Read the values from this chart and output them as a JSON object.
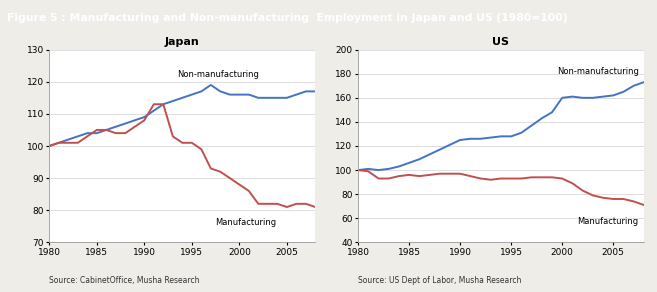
{
  "title": "Figure 5 : Manufacturing and Non-manufacturing  Employment in Japan and US (1980=100)",
  "title_bg": "#2e7d4f",
  "title_color": "white",
  "japan_title": "Japan",
  "us_title": "US",
  "years": [
    1980,
    1981,
    1982,
    1983,
    1984,
    1985,
    1986,
    1987,
    1988,
    1989,
    1990,
    1991,
    1992,
    1993,
    1994,
    1995,
    1996,
    1997,
    1998,
    1999,
    2000,
    2001,
    2002,
    2003,
    2004,
    2005,
    2006,
    2007,
    2008
  ],
  "japan_nonmfg": [
    100,
    101,
    102,
    103,
    104,
    104,
    105,
    106,
    107,
    108,
    109,
    111,
    113,
    114,
    115,
    116,
    117,
    119,
    117,
    116,
    116,
    116,
    115,
    115,
    115,
    115,
    116,
    117,
    117
  ],
  "japan_mfg": [
    100,
    101,
    101,
    101,
    103,
    105,
    105,
    104,
    104,
    106,
    108,
    113,
    113,
    103,
    101,
    101,
    99,
    93,
    92,
    90,
    88,
    86,
    82,
    82,
    82,
    81,
    82,
    82,
    81
  ],
  "us_nonmfg": [
    100,
    101,
    100,
    101,
    103,
    106,
    109,
    113,
    117,
    121,
    125,
    126,
    126,
    127,
    128,
    128,
    131,
    137,
    143,
    148,
    160,
    161,
    160,
    160,
    161,
    162,
    165,
    170,
    173
  ],
  "us_mfg": [
    100,
    99,
    93,
    93,
    95,
    96,
    95,
    96,
    97,
    97,
    97,
    95,
    93,
    92,
    93,
    93,
    93,
    94,
    94,
    94,
    93,
    89,
    83,
    79,
    77,
    76,
    76,
    74,
    71
  ],
  "nonmfg_color": "#4472c4",
  "mfg_color": "#c0504d",
  "japan_ylim": [
    70,
    130
  ],
  "japan_yticks": [
    70,
    80,
    90,
    100,
    110,
    120,
    130
  ],
  "us_ylim": [
    40,
    200
  ],
  "us_yticks": [
    40,
    60,
    80,
    100,
    120,
    140,
    160,
    180,
    200
  ],
  "xlim": [
    1980,
    2008
  ],
  "xticks": [
    1980,
    1985,
    1990,
    1995,
    2000,
    2005
  ],
  "japan_source": "Source: CabinetOffice, Musha Research",
  "us_source": "Source: US Dept of Labor, Musha Research",
  "bg_color": "#eeede8",
  "plot_bg": "white",
  "grid_color": "#d0d0d0",
  "spine_color": "#999999"
}
